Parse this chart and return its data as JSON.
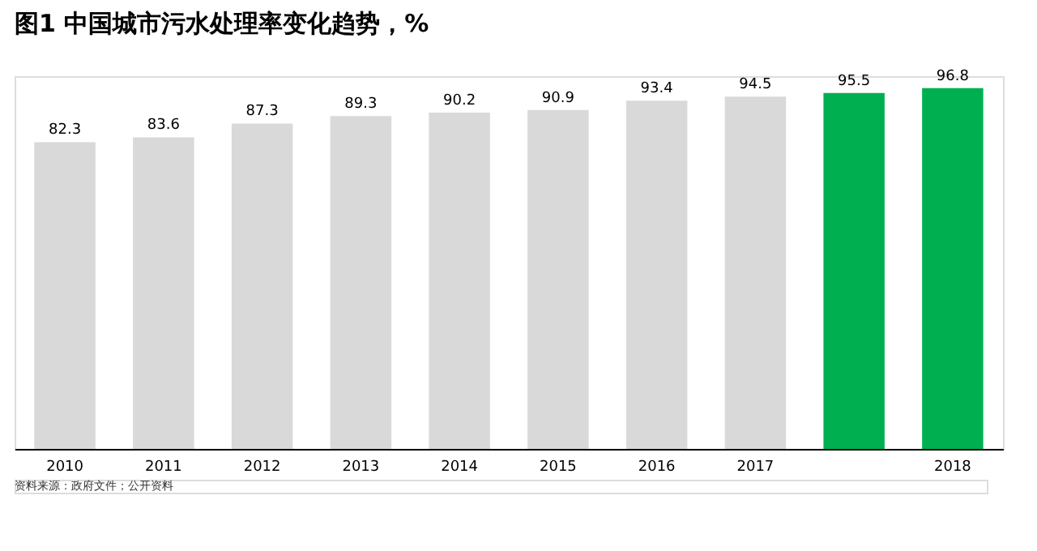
{
  "chart_data": {
    "type": "bar",
    "title": "图1 中国城市污水处理率变化趋势，%",
    "categories": [
      "2010",
      "2011",
      "2012",
      "2013",
      "2014",
      "2015",
      "2016",
      "2017",
      null,
      "2018"
    ],
    "values": [
      82.3,
      83.6,
      87.3,
      89.3,
      90.2,
      90.9,
      93.4,
      94.5,
      95.5,
      96.8
    ],
    "colors": [
      "#d9d9d9",
      "#d9d9d9",
      "#d9d9d9",
      "#d9d9d9",
      "#d9d9d9",
      "#d9d9d9",
      "#d9d9d9",
      "#d9d9d9",
      "#00b050",
      "#00b050"
    ],
    "ylim": [
      0,
      100
    ],
    "data_labels": true,
    "tick_labels": "x",
    "grid": false,
    "annotations": [
      "资料来源：政府文件；公开资料"
    ]
  }
}
